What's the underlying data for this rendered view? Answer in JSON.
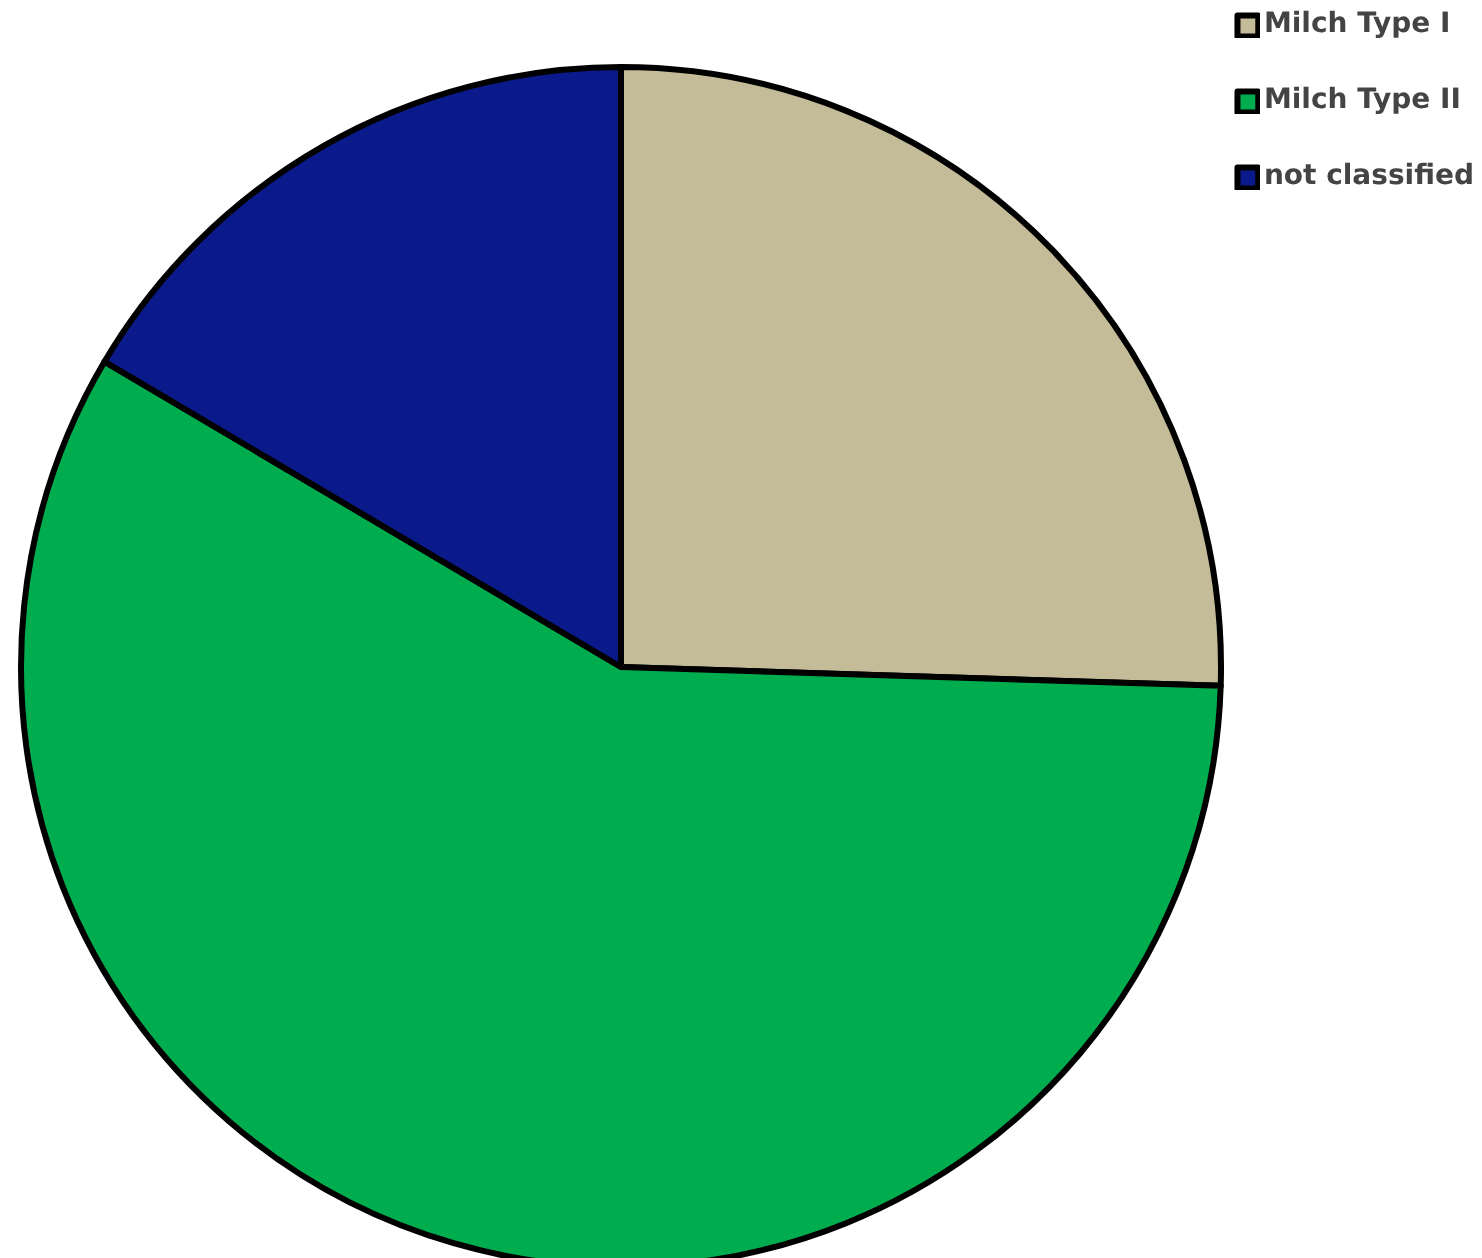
{
  "chart_data": {
    "type": "pie",
    "categories": [
      "Milch Type I",
      "Milch Type II",
      "not classified"
    ],
    "values": [
      25.5,
      58,
      16.5
    ],
    "colors": [
      "#c4bc98",
      "#00ad4e",
      "#0a1a8a"
    ],
    "legend": "top right"
  }
}
